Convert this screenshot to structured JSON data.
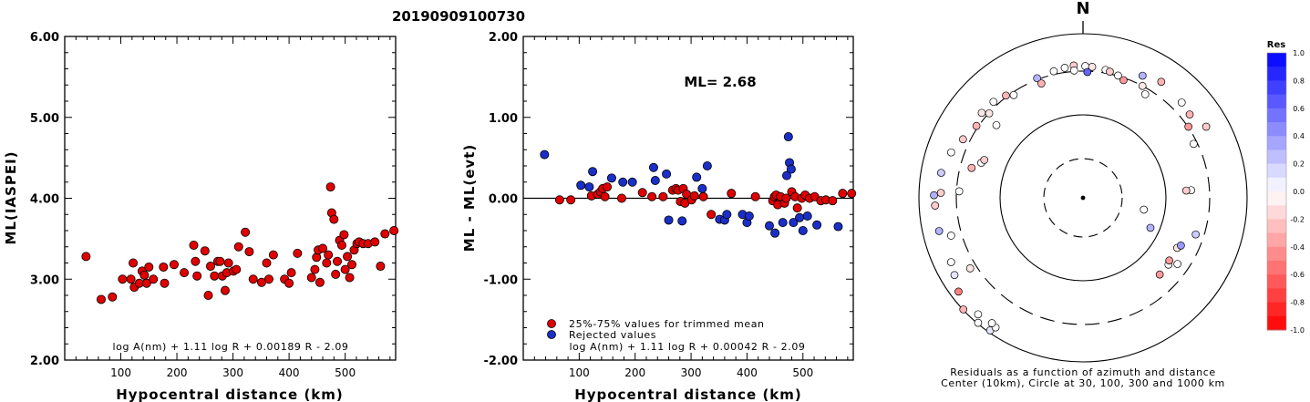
{
  "page": {
    "title": "20190909100730"
  },
  "chart_data": [
    {
      "id": "ml-iaspei",
      "type": "scatter",
      "xlabel": "Hypocentral distance (km)",
      "ylabel": "ML(IASPEI)",
      "xlim": [
        0,
        590
      ],
      "ylim": [
        2.0,
        6.0
      ],
      "xticks": [
        "100",
        "200",
        "300",
        "400",
        "500"
      ],
      "yticks": [
        "2.00",
        "3.00",
        "4.00",
        "5.00",
        "6.00"
      ],
      "formula": "log A(nm) + 1.11 log R + 0.00189 R - 2.09",
      "points": [
        [
          38,
          3.28
        ],
        [
          65,
          2.75
        ],
        [
          85,
          2.78
        ],
        [
          103,
          3.0
        ],
        [
          118,
          3.0
        ],
        [
          122,
          3.2
        ],
        [
          124,
          2.9
        ],
        [
          133,
          2.95
        ],
        [
          138,
          3.1
        ],
        [
          142,
          3.05
        ],
        [
          146,
          2.95
        ],
        [
          150,
          3.15
        ],
        [
          158,
          3.0
        ],
        [
          176,
          3.15
        ],
        [
          178,
          2.95
        ],
        [
          195,
          3.18
        ],
        [
          213,
          3.08
        ],
        [
          230,
          3.42
        ],
        [
          233,
          3.22
        ],
        [
          236,
          3.04
        ],
        [
          250,
          3.35
        ],
        [
          256,
          2.8
        ],
        [
          260,
          3.16
        ],
        [
          267,
          3.04
        ],
        [
          273,
          3.22
        ],
        [
          277,
          3.22
        ],
        [
          281,
          3.04
        ],
        [
          286,
          2.86
        ],
        [
          289,
          3.08
        ],
        [
          292,
          3.2
        ],
        [
          301,
          3.1
        ],
        [
          306,
          3.12
        ],
        [
          310,
          3.4
        ],
        [
          322,
          3.58
        ],
        [
          329,
          3.34
        ],
        [
          336,
          3.0
        ],
        [
          351,
          2.96
        ],
        [
          360,
          3.2
        ],
        [
          364,
          3.0
        ],
        [
          372,
          3.3
        ],
        [
          392,
          3.0
        ],
        [
          400,
          2.95
        ],
        [
          404,
          3.08
        ],
        [
          415,
          3.32
        ],
        [
          440,
          3.02
        ],
        [
          446,
          3.12
        ],
        [
          449,
          3.27
        ],
        [
          452,
          3.36
        ],
        [
          455,
          2.96
        ],
        [
          460,
          3.38
        ],
        [
          467,
          3.2
        ],
        [
          470,
          3.3
        ],
        [
          474,
          4.14
        ],
        [
          476,
          3.82
        ],
        [
          480,
          3.74
        ],
        [
          483,
          3.06
        ],
        [
          486,
          3.22
        ],
        [
          490,
          3.48
        ],
        [
          494,
          3.42
        ],
        [
          498,
          3.55
        ],
        [
          500,
          3.12
        ],
        [
          504,
          3.28
        ],
        [
          508,
          3.02
        ],
        [
          512,
          3.18
        ],
        [
          516,
          3.36
        ],
        [
          521,
          3.44
        ],
        [
          525,
          3.46
        ],
        [
          532,
          3.44
        ],
        [
          541,
          3.44
        ],
        [
          553,
          3.46
        ],
        [
          563,
          3.16
        ],
        [
          571,
          3.56
        ],
        [
          587,
          3.6
        ]
      ]
    },
    {
      "id": "ml-residual",
      "type": "scatter",
      "xlabel": "Hypocentral distance (km)",
      "ylabel": "ML - ML(evt)",
      "xlim": [
        0,
        590
      ],
      "ylim": [
        -2.0,
        2.0
      ],
      "xticks": [
        "100",
        "200",
        "300",
        "400",
        "500"
      ],
      "yticks": [
        "-2.00",
        "-1.00",
        "0.00",
        "1.00",
        "2.00"
      ],
      "annotation": "ML= 2.68",
      "formula": "log A(nm) + 1.11 log R + 0.00042 R - 2.09",
      "legend": [
        {
          "label": "25%-75% values for trimmed mean",
          "color": "#e00000"
        },
        {
          "label": "Rejected values",
          "color": "#1a2fc8"
        }
      ],
      "series": [
        {
          "name": "25%-75% values for trimmed mean",
          "color": "#e00000",
          "points": [
            [
              65,
              -0.02
            ],
            [
              85,
              -0.02
            ],
            [
              122,
              0.03
            ],
            [
              133,
              0.05
            ],
            [
              138,
              0.08
            ],
            [
              142,
              0.12
            ],
            [
              146,
              0.02
            ],
            [
              150,
              0.14
            ],
            [
              176,
              0.0
            ],
            [
              213,
              0.07
            ],
            [
              230,
              0.02
            ],
            [
              250,
              0.02
            ],
            [
              267,
              0.1
            ],
            [
              273,
              0.12
            ],
            [
              277,
              0.1
            ],
            [
              281,
              -0.04
            ],
            [
              286,
              0.12
            ],
            [
              289,
              -0.06
            ],
            [
              292,
              0.05
            ],
            [
              301,
              -0.02
            ],
            [
              306,
              0.03
            ],
            [
              322,
              0.02
            ],
            [
              336,
              -0.2
            ],
            [
              372,
              0.06
            ],
            [
              415,
              0.02
            ],
            [
              446,
              -0.03
            ],
            [
              449,
              0.02
            ],
            [
              452,
              0.04
            ],
            [
              455,
              -0.08
            ],
            [
              460,
              0.02
            ],
            [
              467,
              -0.06
            ],
            [
              470,
              0.0
            ],
            [
              480,
              0.08
            ],
            [
              486,
              0.02
            ],
            [
              490,
              -0.12
            ],
            [
              498,
              0.0
            ],
            [
              504,
              0.04
            ],
            [
              512,
              0.0
            ],
            [
              521,
              0.02
            ],
            [
              532,
              -0.03
            ],
            [
              541,
              -0.02
            ],
            [
              553,
              -0.03
            ],
            [
              571,
              0.06
            ],
            [
              587,
              0.06
            ]
          ]
        },
        {
          "name": "Rejected values",
          "color": "#1a2fc8",
          "points": [
            [
              38,
              0.54
            ],
            [
              103,
              0.16
            ],
            [
              118,
              0.14
            ],
            [
              124,
              0.33
            ],
            [
              158,
              0.25
            ],
            [
              178,
              0.2
            ],
            [
              195,
              0.2
            ],
            [
              233,
              0.38
            ],
            [
              236,
              0.22
            ],
            [
              256,
              0.3
            ],
            [
              260,
              -0.27
            ],
            [
              284,
              -0.28
            ],
            [
              310,
              0.26
            ],
            [
              320,
              0.12
            ],
            [
              329,
              0.4
            ],
            [
              351,
              -0.26
            ],
            [
              360,
              -0.27
            ],
            [
              364,
              -0.2
            ],
            [
              392,
              -0.2
            ],
            [
              400,
              -0.3
            ],
            [
              404,
              -0.22
            ],
            [
              440,
              -0.34
            ],
            [
              450,
              -0.43
            ],
            [
              464,
              -0.3
            ],
            [
              471,
              0.28
            ],
            [
              474,
              0.76
            ],
            [
              476,
              0.44
            ],
            [
              479,
              0.36
            ],
            [
              483,
              -0.3
            ],
            [
              494,
              -0.24
            ],
            [
              500,
              -0.4
            ],
            [
              508,
              -0.22
            ],
            [
              525,
              -0.33
            ],
            [
              563,
              -0.35
            ]
          ]
        }
      ]
    },
    {
      "id": "azimuth-residuals",
      "type": "scatter",
      "north_label": "N",
      "caption_line1": "Residuals as a function of azimuth and distance",
      "caption_line2": "Center (10km), Circle at 30, 100, 300 and 1000 km",
      "scale_title": "Res",
      "scale_ticks": [
        "1.0",
        "0.8",
        "0.6",
        "0.4",
        "0.2",
        "0.0",
        "-0.2",
        "-0.4",
        "-0.6",
        "-0.8",
        "-1.0"
      ],
      "points": [
        [
          -71,
          236,
          0.0
        ],
        [
          -69,
          232,
          -0.2
        ],
        [
          -75,
          253,
          -0.3
        ],
        [
          -87,
          272,
          0.0
        ],
        [
          -106,
          301,
          0.0
        ],
        [
          -122,
          292,
          -0.1
        ],
        [
          -88,
          312,
          -0.2
        ],
        [
          -103,
          324,
          0.3
        ],
        [
          -121,
          329,
          0.1
        ],
        [
          -127,
          342,
          -0.5
        ],
        [
          -138,
          344,
          0.0
        ],
        [
          -145,
          355,
          0.1
        ],
        [
          -133,
          359,
          -0.3
        ],
        [
          -140,
          358,
          0.0
        ],
        [
          -146,
          343,
          0.0
        ],
        [
          -144,
          340,
          0.0
        ],
        [
          -116,
          322,
          0.0
        ],
        [
          -93,
          325,
          -0.2
        ],
        [
          -89,
          327,
          0.3
        ],
        [
          -80,
          316,
          0.2
        ],
        [
          -71,
          306,
          0.0
        ],
        [
          -64,
          293,
          -0.2
        ],
        [
          -56,
          282,
          -0.3
        ],
        [
          -50,
          248,
          0.0
        ],
        [
          -50,
          290,
          -0.1
        ],
        [
          -48,
          277,
          -0.1
        ],
        [
          -37,
          281,
          -0.3
        ],
        [
          -43,
          288,
          0.0
        ],
        [
          -34,
          272,
          0.0
        ],
        [
          -21,
          281,
          0.3
        ],
        [
          -13,
          285,
          0.0
        ],
        [
          -8,
          288,
          0.0
        ],
        [
          -4,
          291,
          -0.2
        ],
        [
          1,
          289,
          0.0
        ],
        [
          4,
          288,
          -0.1
        ],
        [
          10,
          285,
          0.0
        ],
        [
          12,
          283,
          -0.2
        ],
        [
          16,
          279,
          0.0
        ],
        [
          19,
          273,
          -0.4
        ],
        [
          31,
          265,
          0.0
        ],
        [
          26,
          298,
          0.3
        ],
        [
          -4,
          280,
          0.0
        ],
        [
          -20,
          267,
          -0.3
        ],
        [
          2,
          276,
          0.6
        ],
        [
          28,
          278,
          -0.1
        ],
        [
          34,
          307,
          -0.3
        ],
        [
          46,
          301,
          0.0
        ],
        [
          52,
          297,
          -0.3
        ],
        [
          56,
          279,
          -0.4
        ],
        [
          64,
          270,
          0.0
        ],
        [
          86,
          238,
          0.0
        ],
        [
          86,
          227,
          -0.2
        ],
        [
          60,
          312,
          -0.2
        ],
        [
          118,
          234,
          -0.1
        ],
        [
          114,
          162,
          0.3
        ],
        [
          101,
          136,
          0.0
        ],
        [
          116,
          239,
          0.4
        ],
        [
          108,
          260,
          0.2
        ],
        [
          125,
          253,
          0.0
        ],
        [
          128,
          238,
          0.0
        ],
        [
          135,
          238,
          -0.4
        ],
        [
          126,
          234,
          -0.4
        ]
      ]
    }
  ]
}
